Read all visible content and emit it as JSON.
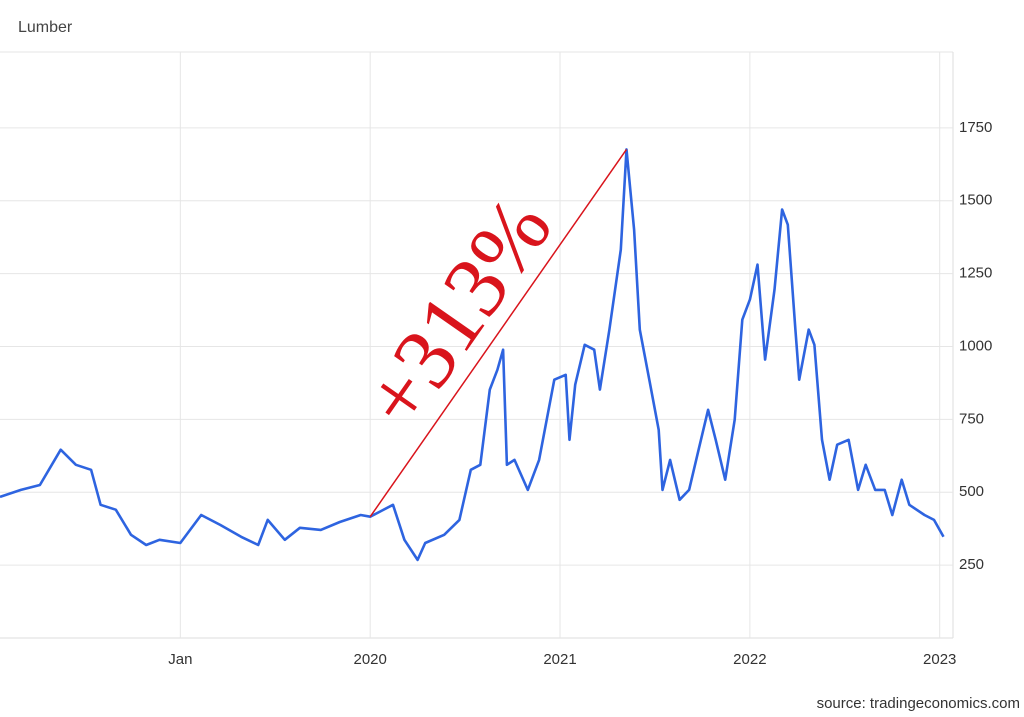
{
  "chart_data": {
    "type": "line",
    "title": "Lumber",
    "source": "source: tradingeconomics.com",
    "annotation": {
      "text": "+313%",
      "color": "#d9141c"
    },
    "x": [
      2018.05,
      2018.16,
      2018.26,
      2018.37,
      2018.45,
      2018.53,
      2018.58,
      2018.66,
      2018.74,
      2018.82,
      2018.89,
      2019.0,
      2019.11,
      2019.21,
      2019.32,
      2019.41,
      2019.46,
      2019.55,
      2019.63,
      2019.74,
      2019.84,
      2019.95,
      2020.0,
      2020.12,
      2020.18,
      2020.25,
      2020.29,
      2020.39,
      2020.47,
      2020.53,
      2020.58,
      2020.63,
      2020.67,
      2020.7,
      2020.72,
      2020.76,
      2020.83,
      2020.89,
      2020.97,
      2021.03,
      2021.05,
      2021.08,
      2021.13,
      2021.18,
      2021.21,
      2021.26,
      2021.32,
      2021.35,
      2021.37,
      2021.39,
      2021.42,
      2021.47,
      2021.52,
      2021.54,
      2021.58,
      2021.63,
      2021.68,
      2021.73,
      2021.78,
      2021.82,
      2021.87,
      2021.92,
      2021.96,
      2022.0,
      2022.04,
      2022.08,
      2022.13,
      2022.17,
      2022.2,
      2022.24,
      2022.26,
      2022.31,
      2022.34,
      2022.38,
      2022.42,
      2022.46,
      2022.52,
      2022.57,
      2022.61,
      2022.66,
      2022.71,
      2022.75,
      2022.8,
      2022.84,
      2022.92,
      2022.97,
      2023.02
    ],
    "series": [
      {
        "name": "Lumber",
        "color": "#2e64e0",
        "values": [
          484,
          508,
          525,
          646,
          594,
          577,
          457,
          440,
          354,
          319,
          337,
          326,
          422,
          388,
          347,
          319,
          405,
          337,
          378,
          371,
          398,
          422,
          416,
          457,
          337,
          268,
          326,
          354,
          405,
          577,
          594,
          852,
          920,
          989,
          594,
          611,
          508,
          611,
          886,
          903,
          680,
          869,
          1006,
          989,
          852,
          1058,
          1332,
          1676,
          1538,
          1401,
          1058,
          886,
          714,
          508,
          611,
          474,
          508,
          646,
          783,
          680,
          543,
          749,
          1092,
          1161,
          1281,
          955,
          1195,
          1470,
          1418,
          1058,
          886,
          1058,
          1006,
          680,
          543,
          663,
          680,
          508,
          594,
          508,
          508,
          422,
          543,
          457,
          422,
          405,
          347
        ]
      }
    ],
    "xlim": [
      2018.05,
      2023.07
    ],
    "xticks": [
      {
        "value": 2019,
        "label": "Jan"
      },
      2020,
      2021,
      2022,
      2023
    ],
    "ylim": [
      0,
      2000
    ],
    "yticks": [
      250,
      500,
      750,
      1000,
      1250,
      1500,
      1750
    ],
    "grid": true
  }
}
